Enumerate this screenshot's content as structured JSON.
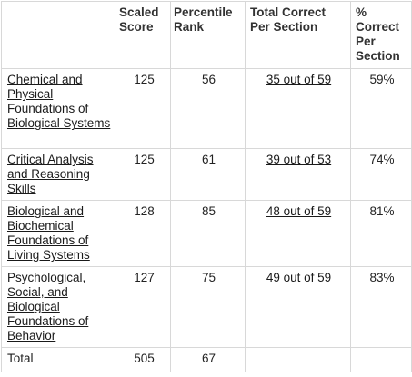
{
  "columns": {
    "section": "",
    "scaled_score": "Scaled Score",
    "percentile_rank": "Percentile Rank",
    "total_correct": "Total Correct Per Section",
    "pct_correct": "% Correct Per Section"
  },
  "rows": [
    {
      "section": "Chemical and Physical Foundations of Biological Systems",
      "scaled_score": "125",
      "percentile_rank": "56",
      "total_correct": "35 out of 59",
      "pct_correct": "59%"
    },
    {
      "section": "Critical Analysis and Reasoning Skills",
      "scaled_score": "125",
      "percentile_rank": "61",
      "total_correct": "39 out of 53",
      "pct_correct": "74%"
    },
    {
      "section": "Biological and Biochemical Foundations of Living Systems",
      "scaled_score": "128",
      "percentile_rank": "85",
      "total_correct": "48 out of 59",
      "pct_correct": "81%"
    },
    {
      "section": "Psychological, Social, and Biological Foundations of Behavior",
      "scaled_score": "127",
      "percentile_rank": "75",
      "total_correct": "49 out of 59",
      "pct_correct": "83%"
    }
  ],
  "total": {
    "label": "Total",
    "scaled_score": "505",
    "percentile_rank": "67",
    "total_correct": "",
    "pct_correct": ""
  }
}
